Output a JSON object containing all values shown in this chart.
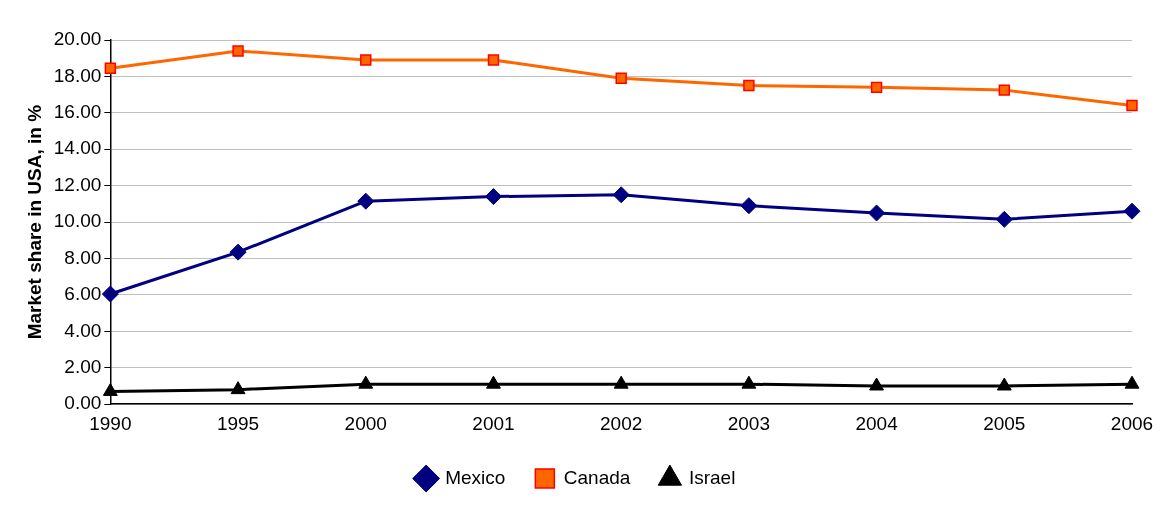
{
  "chart_data": {
    "type": "line",
    "ylabel": "Market share in USA, in %",
    "categories": [
      "1990",
      "1995",
      "2000",
      "2001",
      "2002",
      "2003",
      "2004",
      "2005",
      "2006"
    ],
    "series": [
      {
        "name": "Mexico",
        "color": "#000080",
        "marker": "diamond",
        "values": [
          6.05,
          8.35,
          11.15,
          11.4,
          11.5,
          10.9,
          10.5,
          10.15,
          10.6
        ]
      },
      {
        "name": "Canada",
        "color": "#ff6600",
        "marker": "square",
        "values": [
          18.45,
          19.4,
          18.9,
          18.9,
          17.9,
          17.5,
          17.4,
          17.25,
          16.4
        ]
      },
      {
        "name": "Israel",
        "color": "#000000",
        "marker": "triangle",
        "values": [
          0.7,
          0.8,
          1.1,
          1.1,
          1.1,
          1.1,
          1.0,
          1.0,
          1.1
        ]
      }
    ],
    "ylim": [
      0,
      20
    ],
    "yticks": [
      {
        "value": 0,
        "label": "0.00"
      },
      {
        "value": 2,
        "label": "2.00"
      },
      {
        "value": 4,
        "label": "4.00"
      },
      {
        "value": 6,
        "label": "6.00"
      },
      {
        "value": 8,
        "label": "8.00"
      },
      {
        "value": 10,
        "label": "10.00"
      },
      {
        "value": 12,
        "label": "12.00"
      },
      {
        "value": 14,
        "label": "14.00"
      },
      {
        "value": 16,
        "label": "16.00"
      },
      {
        "value": 18,
        "label": "18.00"
      },
      {
        "value": 20,
        "label": "20.00"
      }
    ],
    "grid": "y",
    "legend": "bottom",
    "line_style": "solid"
  }
}
